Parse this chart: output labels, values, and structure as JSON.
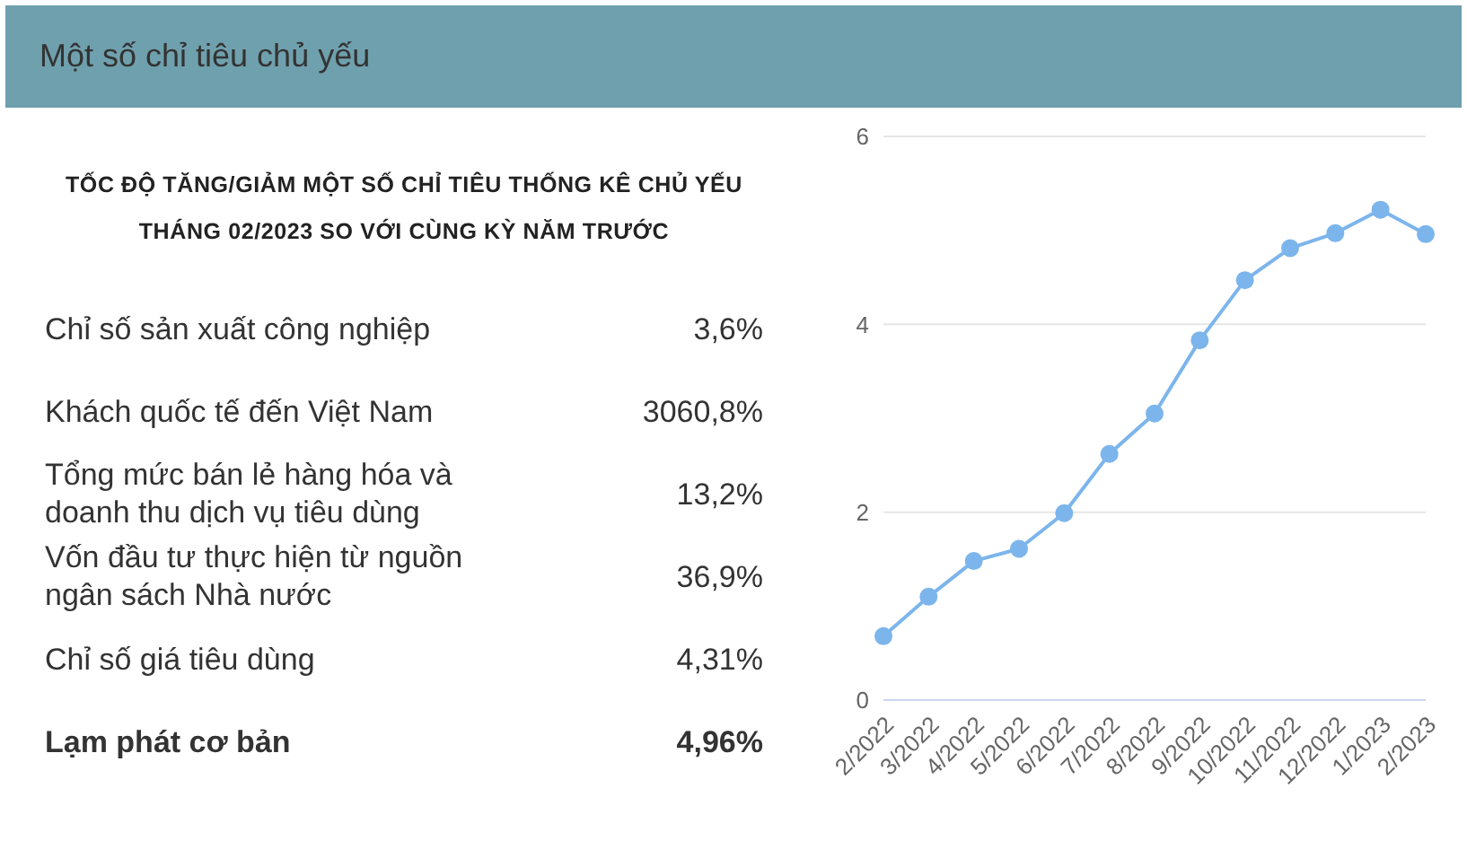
{
  "chart_data": [
    {
      "type": "other",
      "title": "Một số chỉ tiêu chủ yếu",
      "subtitle": "TỐC ĐỘ TĂNG/GIẢM MỘT SỐ CHỈ TIÊU THỐNG KÊ CHỦ YẾU THÁNG 02/2023 SO VỚI CÙNG KỲ NĂM TRƯỚC",
      "categories": [
        "Chỉ số sản xuất công nghiệp",
        "Khách quốc tế đến Việt Nam",
        "Tổng mức bán lẻ hàng hóa và doanh thu dịch vụ tiêu dùng",
        "Vốn đầu tư thực hiện từ nguồn ngân sách Nhà nước",
        "Chỉ số giá tiêu dùng",
        "Lạm phát cơ bản"
      ],
      "value_labels": [
        "3,6%",
        "3060,8%",
        "13,2%",
        "36,9%",
        "4,31%",
        "4,96%"
      ]
    },
    {
      "type": "line",
      "categories": [
        "2/2022",
        "3/2022",
        "4/2022",
        "5/2022",
        "6/2022",
        "7/2022",
        "8/2022",
        "9/2022",
        "10/2022",
        "11/2022",
        "12/2022",
        "1/2023",
        "2/2023"
      ],
      "values": [
        0.68,
        1.1,
        1.48,
        1.61,
        1.99,
        2.62,
        3.05,
        3.83,
        4.47,
        4.81,
        4.97,
        5.22,
        4.96
      ],
      "color": "#7cb5ec",
      "ylim": [
        0,
        6
      ],
      "yticks": [
        0,
        2,
        4,
        6
      ],
      "grid": "y",
      "marker": "circle",
      "line_style": "solid"
    }
  ]
}
